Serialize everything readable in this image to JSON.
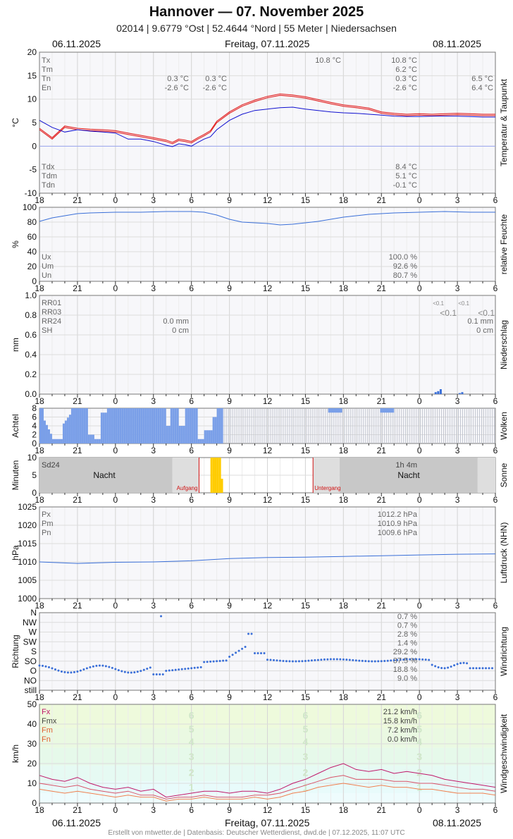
{
  "header": {
    "title": "Hannover  —  07. November 2025",
    "subtitle": "02014  |  9.6779 °Ost  |  52.4644 °Nord  |  55 Meter  |  Niedersachsen",
    "date_left": "06.11.2025",
    "date_center": "Freitag, 07.11.2025",
    "date_right": "08.11.2025"
  },
  "footer": "Erstellt von mtwetter.de | Datenbasis: Deutscher Wetterdienst, dwd.de | 07.12.2025, 11:07 UTC",
  "x_ticks": [
    "18",
    "21",
    "0",
    "3",
    "6",
    "9",
    "12",
    "15",
    "18",
    "21",
    "0",
    "3",
    "6"
  ],
  "chart_data": [
    {
      "id": "temp",
      "type": "line",
      "ylabel": "°C",
      "side_label": "Temperatur & Taupunkt",
      "ylim": [
        -10,
        20
      ],
      "y_ticks": [
        "20",
        "15",
        "10",
        "5",
        "0",
        "-5",
        "-10"
      ],
      "grid": true,
      "x_range_hours": [
        -6,
        30
      ],
      "series": [
        {
          "name": "Temperatur",
          "color": "#e01010",
          "x": [
            -6,
            -5,
            -4,
            -3,
            -2,
            -1,
            0,
            1,
            2,
            3,
            4,
            4.5,
            5,
            5.5,
            6,
            6.5,
            7,
            7.5,
            8,
            9,
            10,
            11,
            12,
            13,
            14,
            15,
            16,
            17,
            18,
            19,
            20,
            21,
            22,
            23,
            24,
            25,
            26,
            27,
            28,
            29,
            30
          ],
          "y": [
            3.5,
            1.5,
            4,
            3.5,
            3.3,
            3.2,
            3.0,
            2.5,
            2.0,
            1.5,
            1.0,
            0.5,
            1.2,
            1.0,
            0.7,
            1.5,
            2.2,
            3.0,
            5.0,
            7.0,
            8.5,
            9.5,
            10.3,
            10.8,
            10.6,
            10.2,
            9.6,
            9.0,
            8.5,
            8.2,
            7.8,
            7.0,
            6.7,
            6.5,
            6.6,
            6.5,
            6.6,
            6.7,
            6.6,
            6.5,
            6.5
          ]
        },
        {
          "name": "Taupunkt",
          "color": "#1010d0",
          "x": [
            -6,
            -5,
            -4,
            -3,
            -2,
            -1,
            0,
            1,
            2,
            3,
            4,
            4.5,
            5,
            5.5,
            6,
            6.5,
            7,
            7.5,
            8,
            9,
            10,
            11,
            12,
            13,
            14,
            15,
            16,
            17,
            18,
            19,
            20,
            21,
            22,
            23,
            24,
            25,
            26,
            27,
            28,
            29,
            30
          ],
          "y": [
            5.5,
            4,
            3,
            3.5,
            3.2,
            3.0,
            2.8,
            1.5,
            1.5,
            1.0,
            0.2,
            -0.1,
            0.5,
            0.3,
            0.0,
            0.8,
            1.5,
            2.0,
            3.5,
            5.5,
            6.8,
            7.6,
            7.9,
            8.2,
            8.3,
            7.9,
            7.6,
            7.3,
            7.1,
            7.0,
            6.8,
            6.6,
            6.4,
            6.3,
            6.3,
            6.4,
            6.4,
            6.4,
            6.3,
            6.2,
            6.2
          ]
        }
      ],
      "labels_top": [
        {
          "k": "Tx",
          "v1": "",
          "v2": "",
          "v_mid": "10.8 °C",
          "v_right": "10.8 °C",
          "v_end": ""
        },
        {
          "k": "Tm",
          "v1": "",
          "v2": "",
          "v_mid": "",
          "v_right": "6.2 °C",
          "v_end": ""
        },
        {
          "k": "Tn",
          "v1": "0.3 °C",
          "v2": "0.3 °C",
          "v_mid": "",
          "v_right": "0.3 °C",
          "v_end": "6.5 °C"
        },
        {
          "k": "En",
          "v1": "-2.6 °C",
          "v2": "-2.6 °C",
          "v_mid": "",
          "v_right": "-2.6 °C",
          "v_end": "6.4 °C"
        }
      ],
      "labels_bottom": [
        {
          "k": "Tdx",
          "v_right": "8.4 °C"
        },
        {
          "k": "Tdm",
          "v_right": "5.1 °C"
        },
        {
          "k": "Tdn",
          "v_right": "-0.1 °C"
        }
      ]
    },
    {
      "id": "humidity",
      "type": "line",
      "ylabel": "%",
      "side_label": "relative Feuchte",
      "ylim": [
        0,
        105
      ],
      "y_ticks": [
        "100",
        "80",
        "60",
        "40",
        "20",
        "0"
      ],
      "series": [
        {
          "name": "relative Feuchte",
          "color": "#3a6fd8",
          "x": [
            -6,
            -5,
            -4,
            -3,
            -2,
            0,
            2,
            4,
            6,
            7,
            8,
            9,
            10,
            11,
            12,
            13,
            14,
            15,
            16,
            17,
            18,
            19,
            20,
            21,
            22,
            24,
            26,
            28,
            30
          ],
          "y": [
            85,
            90,
            93,
            96,
            97,
            98,
            98,
            99,
            99,
            98,
            94,
            88,
            84,
            83,
            82,
            80,
            81,
            83,
            85,
            88,
            91,
            93,
            95,
            96,
            97,
            98,
            99,
            98,
            98
          ]
        }
      ],
      "labels": [
        {
          "k": "Ux",
          "v": "100.0 %"
        },
        {
          "k": "Um",
          "v": "92.6 %"
        },
        {
          "k": "Un",
          "v": "80.7 %"
        }
      ]
    },
    {
      "id": "precip",
      "type": "bar",
      "ylabel": "mm",
      "side_label": "Niederschlag",
      "ylim": [
        0,
        1.0
      ],
      "y_ticks": [
        "1.0",
        "0.8",
        "0.6",
        "0.4",
        "0.2",
        "0.0"
      ],
      "bars": [
        {
          "x": 25.2,
          "y": 0.02
        },
        {
          "x": 25.4,
          "y": 0.03
        },
        {
          "x": 25.6,
          "y": 0.05
        },
        {
          "x": 27.1,
          "y": 0.01
        },
        {
          "x": 27.3,
          "y": 0.02
        }
      ],
      "labels": [
        {
          "k": "RR01",
          "v1": "",
          "v_small1": "<0.1",
          "v_small2": "<0.1"
        },
        {
          "k": "RR03",
          "v1": "",
          "v_big1": "<0.1",
          "v_big2": "<0.1"
        },
        {
          "k": "RR24",
          "v1": "0.0 mm",
          "v_end": "0.1 mm"
        },
        {
          "k": "SH",
          "v1": "0 cm",
          "v_end": "0 cm"
        }
      ]
    },
    {
      "id": "clouds",
      "type": "bar",
      "ylabel": "Achtel",
      "side_label": "Wolken",
      "ylim": [
        0,
        8
      ],
      "y_ticks": [
        "8",
        "6",
        "4",
        "2",
        "0"
      ]
    },
    {
      "id": "sun",
      "type": "bar",
      "ylabel": "Minuten",
      "side_label": "Sonne",
      "ylim": [
        0,
        10
      ],
      "y_ticks": [
        "10",
        "5",
        "0"
      ],
      "sunrise": "Aufgang",
      "sunset": "Untergang",
      "night_label": "Nacht",
      "labels": [
        {
          "k": "Sd24",
          "v": "1h 4m"
        }
      ]
    },
    {
      "id": "pressure",
      "type": "line",
      "ylabel": "hPa",
      "side_label": "Luftdruck (NHN)",
      "ylim": [
        1000,
        1025
      ],
      "y_ticks": [
        "1025",
        "1020",
        "1015",
        "1010",
        "1005",
        "1000"
      ],
      "series": [
        {
          "name": "Luftdruck",
          "color": "#3a6fd8",
          "x": [
            -6,
            -3,
            0,
            3,
            6,
            9,
            12,
            15,
            18,
            21,
            24,
            27,
            30
          ],
          "y": [
            1010.0,
            1009.6,
            1009.9,
            1010.0,
            1010.3,
            1010.9,
            1011.2,
            1011.3,
            1011.5,
            1011.7,
            1011.9,
            1012.1,
            1012.2
          ]
        }
      ],
      "labels": [
        {
          "k": "Px",
          "v": "1012.2 hPa"
        },
        {
          "k": "Pm",
          "v": "1010.9 hPa"
        },
        {
          "k": "Pn",
          "v": "1009.6 hPa"
        }
      ]
    },
    {
      "id": "winddir",
      "type": "scatter",
      "ylabel": "Richtung",
      "side_label": "Windrichtung",
      "y_ticks": [
        "N",
        "NW",
        "W",
        "SW",
        "S",
        "SO",
        "O",
        "NO",
        "still"
      ],
      "labels": [
        {
          "k": "N",
          "v": "0.7 %"
        },
        {
          "k": "NW",
          "v": "0.7 %"
        },
        {
          "k": "W",
          "v": "2.8 %"
        },
        {
          "k": "SW",
          "v": "1.4 %"
        },
        {
          "k": "S",
          "v": "29.2 %"
        },
        {
          "k": "SO",
          "v": "37.5 %"
        },
        {
          "k": "O",
          "v": "18.8 %"
        },
        {
          "k": "NO",
          "v": "9.0 %"
        }
      ]
    },
    {
      "id": "windspeed",
      "type": "line",
      "ylabel": "km/h",
      "side_label": "Windgeschwindigkeit",
      "ylim": [
        0,
        50
      ],
      "y_ticks": [
        "50",
        "40",
        "30",
        "20",
        "10",
        "0"
      ],
      "beaufort": [
        "6",
        "5",
        "4",
        "3",
        "2",
        "1"
      ],
      "series": [
        {
          "name": "Fx",
          "color": "#c0186a",
          "x": [
            -6,
            -5,
            -4,
            -3,
            -2,
            -1,
            0,
            1,
            2,
            3,
            4,
            5,
            6,
            7,
            8,
            9,
            10,
            11,
            12,
            13,
            14,
            15,
            16,
            17,
            18,
            19,
            20,
            21,
            22,
            23,
            24,
            25,
            26,
            27,
            28,
            29,
            30
          ],
          "y": [
            14,
            12,
            11,
            13,
            10,
            8,
            7,
            8,
            6,
            7,
            3,
            4,
            5,
            6,
            6,
            5,
            6,
            6,
            5,
            7,
            10,
            12,
            15,
            18,
            20,
            17,
            16,
            17,
            15,
            16,
            15,
            14,
            12,
            11,
            10,
            9,
            8
          ]
        },
        {
          "name": "Fmx",
          "color": "#d8546a",
          "x": [
            -6,
            -5,
            -4,
            -3,
            -2,
            -1,
            0,
            1,
            2,
            3,
            4,
            5,
            6,
            7,
            8,
            9,
            10,
            11,
            12,
            13,
            14,
            15,
            16,
            17,
            18,
            19,
            20,
            21,
            22,
            23,
            24,
            25,
            26,
            27,
            28,
            29,
            30
          ],
          "y": [
            10,
            9,
            8,
            9,
            7,
            6,
            5,
            6,
            4,
            4,
            2,
            3,
            3,
            4,
            3,
            3,
            3,
            4,
            4,
            5,
            7,
            9,
            11,
            13,
            14,
            12,
            12,
            12,
            11,
            11,
            10,
            10,
            9,
            8,
            7,
            7,
            6
          ]
        },
        {
          "name": "Fm",
          "color": "#f08050",
          "x": [
            -6,
            -5,
            -4,
            -3,
            -2,
            -1,
            0,
            1,
            2,
            3,
            4,
            5,
            6,
            7,
            8,
            9,
            10,
            11,
            12,
            13,
            14,
            15,
            16,
            17,
            18,
            19,
            20,
            21,
            22,
            23,
            24,
            25,
            26,
            27,
            28,
            29,
            30
          ],
          "y": [
            7,
            6,
            5,
            6,
            5,
            4,
            3,
            4,
            3,
            3,
            1,
            2,
            2,
            3,
            2,
            2,
            2,
            3,
            2,
            3,
            5,
            6,
            8,
            9,
            10,
            9,
            8,
            9,
            8,
            8,
            7,
            7,
            6,
            5,
            5,
            5,
            4
          ]
        }
      ],
      "labels": [
        {
          "k": "Fx",
          "v": "21.2 km/h",
          "color": "#c0186a"
        },
        {
          "k": "Fmx",
          "v": "15.8 km/h",
          "color": "#444444"
        },
        {
          "k": "Fm",
          "v": "7.2 km/h",
          "color": "#e06030"
        },
        {
          "k": "Fn",
          "v": "0.0 km/h",
          "color": "#e06030"
        }
      ]
    }
  ]
}
